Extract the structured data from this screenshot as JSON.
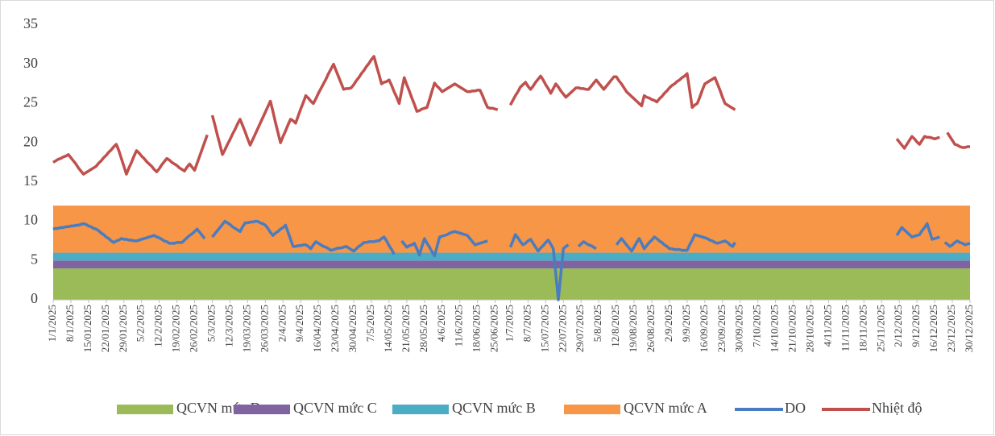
{
  "chart_data": {
    "type": "line",
    "ylim": [
      0,
      35
    ],
    "yticks": [
      0,
      5,
      10,
      15,
      20,
      25,
      30,
      35
    ],
    "grid": false,
    "legend": "bottom",
    "bands": [
      {
        "name": "QCVN mức D",
        "color": "#9bbb59",
        "value": 4
      },
      {
        "name": "QCVN mức C",
        "color": "#8064a2",
        "value": 1
      },
      {
        "name": "QCVN mức B",
        "color": "#4bacc6",
        "value": 1
      },
      {
        "name": "QCVN mức A",
        "color": "#f79646",
        "value": 6
      }
    ],
    "categories": [
      "1/1/2025",
      null,
      null,
      null,
      null,
      null,
      null,
      "8/1/2025",
      null,
      null,
      null,
      null,
      null,
      null,
      "15/01/2025",
      null,
      null,
      null,
      null,
      null,
      null,
      "22/01/2025",
      null,
      null,
      null,
      null,
      null,
      null,
      "29/01/2025",
      null,
      null,
      null,
      null,
      null,
      null,
      "5/2/2025",
      null,
      null,
      null,
      null,
      null,
      null,
      "12/2/2025",
      null,
      null,
      null,
      null,
      null,
      null,
      "19/02/2025",
      null,
      null,
      null,
      null,
      null,
      null,
      "26/02/2025",
      null,
      null,
      null,
      null,
      null,
      null,
      "5/3/2025",
      null,
      null,
      null,
      null,
      null,
      null,
      "12/3/2025",
      null,
      null,
      null,
      null,
      null,
      null,
      "19/03/2025",
      null,
      null,
      null,
      null,
      null,
      null,
      "26/03/2025",
      null,
      null,
      null,
      null,
      null,
      null,
      "2/4/2025",
      null,
      null,
      null,
      null,
      null,
      null,
      "9/4/2025",
      null,
      null,
      null,
      null,
      null,
      null,
      "16/04/2025",
      null,
      null,
      null,
      null,
      null,
      null,
      "23/04/2025",
      null,
      null,
      null,
      null,
      null,
      null,
      "30/04/2025",
      null,
      null,
      null,
      null,
      null,
      null,
      "7/5/2025",
      null,
      null,
      null,
      null,
      null,
      null,
      "14/05/2025",
      null,
      null,
      null,
      null,
      null,
      null,
      "21/05/2025",
      null,
      null,
      null,
      null,
      null,
      null,
      "28/05/2025",
      null,
      null,
      null,
      null,
      null,
      null,
      "4/6/2025",
      null,
      null,
      null,
      null,
      null,
      null,
      "11/6/2025",
      null,
      null,
      null,
      null,
      null,
      null,
      "18/06/2025",
      null,
      null,
      null,
      null,
      null,
      null,
      "25/06/2025",
      null,
      null,
      null,
      null,
      null,
      "1/7/2025",
      null,
      null,
      null,
      null,
      null,
      null,
      "8/7/2025",
      null,
      null,
      null,
      null,
      null,
      null,
      "15/07/2025",
      null,
      null,
      null,
      null,
      null,
      null,
      "22/07/2025",
      null,
      null,
      null,
      null,
      null,
      null,
      "29/07/2025",
      null,
      null,
      null,
      null,
      null,
      null,
      "5/8/2025",
      null,
      null,
      null,
      null,
      null,
      null,
      "12/8/2025",
      null,
      null,
      null,
      null,
      null,
      null,
      "19/08/2025",
      null,
      null,
      null,
      null,
      null,
      null,
      "26/08/2025",
      null,
      null,
      null,
      null,
      null,
      null,
      "2/9/2025",
      null,
      null,
      null,
      null,
      null,
      null,
      "9/9/2025",
      null,
      null,
      null,
      null,
      null,
      null,
      "16/09/2025",
      null,
      null,
      null,
      null,
      null,
      null,
      "23/09/2025",
      null,
      null,
      null,
      null,
      null,
      null,
      "30/09/2025",
      null,
      null,
      null,
      null,
      null,
      null,
      "7/10/2025",
      null,
      null,
      null,
      null,
      null,
      null,
      "14/10/2025",
      null,
      null,
      null,
      null,
      null,
      null,
      "21/10/2025",
      null,
      null,
      null,
      null,
      null,
      null,
      "28/10/2025",
      null,
      null,
      null,
      null,
      null,
      null,
      "4/11/2025",
      null,
      null,
      null,
      null,
      null,
      null,
      "11/11/2025",
      null,
      null,
      null,
      null,
      null,
      null,
      "18/11/2025",
      null,
      null,
      null,
      null,
      null,
      null,
      "25/11/2025",
      null,
      null,
      null,
      null,
      null,
      null,
      "2/12/2025",
      null,
      null,
      null,
      null,
      null,
      null,
      "9/12/2025",
      null,
      null,
      null,
      null,
      null,
      null,
      "16/12/2025",
      null,
      null,
      null,
      null,
      null,
      null,
      "23/12/2025",
      null,
      null,
      null,
      null,
      null,
      null,
      "30/12/2025"
    ],
    "series": [
      {
        "name": "DO",
        "color": "#4a7cc0",
        "values": [
          9.0,
          9.1,
          9.1,
          9.2,
          9.2,
          9.3,
          9.3,
          9.4,
          9.4,
          9.5,
          9.5,
          9.6,
          9.7,
          9.6,
          9.4,
          9.3,
          9.1,
          9.0,
          8.8,
          8.5,
          8.3,
          8.0,
          7.8,
          7.5,
          7.3,
          7.5,
          7.6,
          7.8,
          7.7,
          7.7,
          7.6,
          7.6,
          7.5,
          7.5,
          7.6,
          7.7,
          7.8,
          7.9,
          8.0,
          8.1,
          8.2,
          8.0,
          7.9,
          7.7,
          7.5,
          7.4,
          7.2,
          7.2,
          7.2,
          7.3,
          7.3,
          7.3,
          7.6,
          7.9,
          8.2,
          8.4,
          8.7,
          9.0,
          8.6,
          8.2,
          7.8,
          null,
          null,
          8.0,
          8.4,
          8.8,
          9.2,
          9.6,
          10.0,
          9.8,
          9.6,
          9.3,
          9.1,
          8.9,
          8.7,
          9.3,
          9.8,
          9.8,
          9.9,
          9.9,
          10.0,
          10.0,
          9.8,
          9.7,
          9.5,
          9.1,
          8.6,
          8.2,
          8.5,
          8.7,
          9.0,
          9.2,
          9.5,
          8.6,
          7.7,
          6.8,
          6.8,
          6.9,
          6.9,
          7.0,
          7.0,
          6.8,
          6.5,
          7.0,
          7.4,
          7.2,
          7.0,
          6.8,
          6.7,
          6.5,
          6.3,
          6.4,
          6.5,
          6.6,
          6.6,
          6.7,
          6.8,
          6.6,
          6.4,
          6.2,
          6.5,
          6.8,
          7.0,
          7.3,
          7.3,
          7.4,
          7.4,
          7.4,
          7.5,
          7.5,
          7.8,
          8.0,
          7.5,
          6.9,
          6.4,
          5.8,
          null,
          null,
          7.5,
          7.1,
          6.7,
          6.9,
          7.0,
          7.2,
          6.5,
          5.7,
          6.8,
          7.8,
          7.2,
          6.7,
          6.1,
          5.6,
          6.8,
          8.0,
          8.1,
          8.2,
          8.3,
          8.5,
          8.6,
          8.7,
          8.6,
          8.5,
          8.4,
          8.3,
          8.2,
          7.8,
          7.4,
          7.0,
          7.1,
          7.2,
          7.3,
          7.4,
          7.5,
          null,
          null,
          null,
          null,
          null,
          null,
          null,
          null,
          6.7,
          7.5,
          8.3,
          7.9,
          7.4,
          7.0,
          7.2,
          7.5,
          7.7,
          7.2,
          6.7,
          6.2,
          6.6,
          6.9,
          7.3,
          7.6,
          7.1,
          6.5,
          3.3,
          0,
          3.3,
          6.5,
          6.8,
          7.0,
          null,
          null,
          null,
          6.8,
          7.1,
          7.4,
          7.2,
          7.0,
          6.9,
          6.7,
          6.5,
          null,
          null,
          null,
          null,
          null,
          null,
          null,
          7.0,
          7.4,
          7.8,
          7.4,
          7.0,
          6.6,
          6.2,
          6.7,
          7.3,
          7.8,
          7.2,
          6.5,
          6.9,
          7.3,
          7.6,
          8.0,
          7.8,
          7.5,
          7.3,
          7.0,
          6.8,
          6.5,
          6.5,
          6.4,
          6.4,
          6.4,
          6.3,
          6.3,
          6.3,
          7.0,
          7.6,
          8.3,
          8.2,
          8.1,
          8.0,
          7.9,
          7.8,
          7.6,
          7.5,
          7.3,
          7.2,
          7.3,
          7.4,
          7.5,
          7.3,
          7.0,
          6.8,
          7.3,
          null,
          null,
          null,
          null,
          null,
          null,
          null,
          null,
          null,
          null,
          null,
          null,
          null,
          null,
          null,
          null,
          null,
          null,
          null,
          null,
          null,
          null,
          null,
          null,
          null,
          null,
          null,
          null,
          null,
          null,
          null,
          null,
          null,
          null,
          null,
          null,
          null,
          null,
          null,
          null,
          null,
          null,
          null,
          null,
          null,
          null,
          null,
          null,
          null,
          null,
          null,
          null,
          null,
          null,
          null,
          null,
          null,
          null,
          null,
          null,
          null,
          null,
          null,
          8.2,
          8.7,
          9.2,
          8.9,
          8.6,
          8.3,
          8.0,
          8.1,
          8.2,
          8.3,
          8.8,
          9.2,
          9.7,
          8.7,
          7.7,
          7.8,
          7.9,
          8.0,
          null,
          7.3,
          7.1,
          6.8,
          7.0,
          7.3,
          7.5,
          7.3,
          7.2,
          7.0,
          7.1,
          7.2
        ]
      },
      {
        "name": "Nhiệt độ",
        "color": "#c0504d",
        "values": [
          17.5,
          17.7,
          17.9,
          18.0,
          18.2,
          18.3,
          18.5,
          18.1,
          17.7,
          17.3,
          16.8,
          16.4,
          16.0,
          16.2,
          16.4,
          16.6,
          16.8,
          17.0,
          17.4,
          17.7,
          18.1,
          18.4,
          18.8,
          19.1,
          19.5,
          19.8,
          19.0,
          18.0,
          17.0,
          16.0,
          16.8,
          17.5,
          18.3,
          19.0,
          18.7,
          18.3,
          18.0,
          17.6,
          17.3,
          17.0,
          16.6,
          16.3,
          16.7,
          17.2,
          17.6,
          18.0,
          17.8,
          17.5,
          17.3,
          17.1,
          16.8,
          16.6,
          16.4,
          16.9,
          17.3,
          16.9,
          16.5,
          17.4,
          18.3,
          19.2,
          20.1,
          21.0,
          null,
          23.5,
          22.3,
          21.0,
          19.8,
          18.5,
          19.1,
          19.8,
          20.4,
          21.1,
          21.7,
          22.4,
          23.0,
          22.2,
          21.4,
          20.5,
          19.7,
          20.4,
          21.1,
          21.8,
          22.5,
          23.2,
          23.9,
          24.6,
          25.3,
          24.0,
          22.6,
          21.3,
          20.0,
          20.8,
          21.5,
          22.3,
          23.0,
          22.8,
          22.5,
          23.4,
          24.3,
          25.1,
          26.0,
          25.7,
          25.3,
          25.0,
          25.6,
          26.3,
          26.9,
          27.5,
          28.1,
          28.8,
          29.4,
          30.0,
          29.2,
          28.4,
          27.6,
          26.8,
          26.9,
          26.9,
          27.0,
          27.4,
          27.9,
          28.3,
          28.8,
          29.2,
          29.7,
          30.1,
          30.6,
          31.0,
          29.8,
          28.7,
          27.5,
          27.7,
          27.8,
          28.0,
          27.3,
          26.5,
          25.8,
          25.0,
          26.7,
          28.3,
          27.4,
          26.6,
          25.7,
          24.9,
          24.0,
          24.1,
          24.3,
          24.4,
          24.5,
          25.5,
          26.6,
          27.6,
          27.2,
          26.9,
          26.5,
          26.7,
          26.9,
          27.1,
          27.3,
          27.5,
          27.3,
          27.1,
          26.9,
          26.7,
          26.5,
          26.5,
          26.6,
          26.6,
          26.7,
          26.7,
          26.0,
          25.2,
          24.5,
          24.4,
          24.4,
          24.3,
          24.2,
          null,
          null,
          null,
          null,
          24.8,
          25.4,
          26.0,
          26.5,
          27.1,
          27.4,
          27.7,
          27.2,
          26.8,
          27.2,
          27.7,
          28.1,
          28.5,
          28.0,
          27.4,
          26.9,
          26.3,
          26.9,
          27.5,
          27.1,
          26.6,
          26.2,
          25.8,
          26.1,
          26.4,
          26.7,
          27.0,
          27.0,
          26.9,
          26.9,
          26.8,
          26.8,
          27.2,
          27.6,
          28.0,
          27.6,
          27.2,
          26.8,
          27.2,
          27.6,
          28.0,
          28.4,
          28.4,
          27.9,
          27.5,
          27.0,
          26.5,
          26.2,
          25.9,
          25.6,
          25.3,
          25.0,
          24.7,
          26.0,
          25.8,
          25.7,
          25.5,
          25.4,
          25.2,
          25.6,
          25.9,
          26.3,
          26.6,
          27.0,
          27.3,
          27.5,
          27.8,
          28.0,
          28.3,
          28.5,
          28.8,
          26.7,
          24.5,
          24.8,
          25.0,
          25.8,
          26.7,
          27.5,
          27.7,
          27.9,
          28.1,
          28.3,
          27.5,
          26.7,
          25.8,
          25.0,
          24.8,
          24.6,
          24.4,
          24.2,
          null,
          null,
          null,
          null,
          null,
          null,
          null,
          null,
          null,
          null,
          null,
          null,
          null,
          null,
          null,
          null,
          null,
          null,
          null,
          null,
          null,
          null,
          null,
          null,
          null,
          null,
          null,
          null,
          null,
          null,
          null,
          null,
          null,
          null,
          null,
          null,
          null,
          null,
          null,
          null,
          null,
          null,
          null,
          null,
          null,
          null,
          null,
          null,
          null,
          null,
          null,
          null,
          null,
          null,
          null,
          null,
          null,
          null,
          null,
          null,
          null,
          null,
          null,
          20.5,
          20.1,
          19.7,
          19.3,
          19.8,
          20.3,
          20.8,
          20.5,
          20.1,
          19.8,
          20.3,
          20.8,
          20.7,
          20.7,
          20.6,
          20.5,
          20.6,
          20.7,
          null,
          null,
          21.3,
          20.8,
          20.3,
          19.8,
          19.7,
          19.5,
          19.4,
          19.4,
          19.5,
          19.5
        ]
      }
    ]
  }
}
